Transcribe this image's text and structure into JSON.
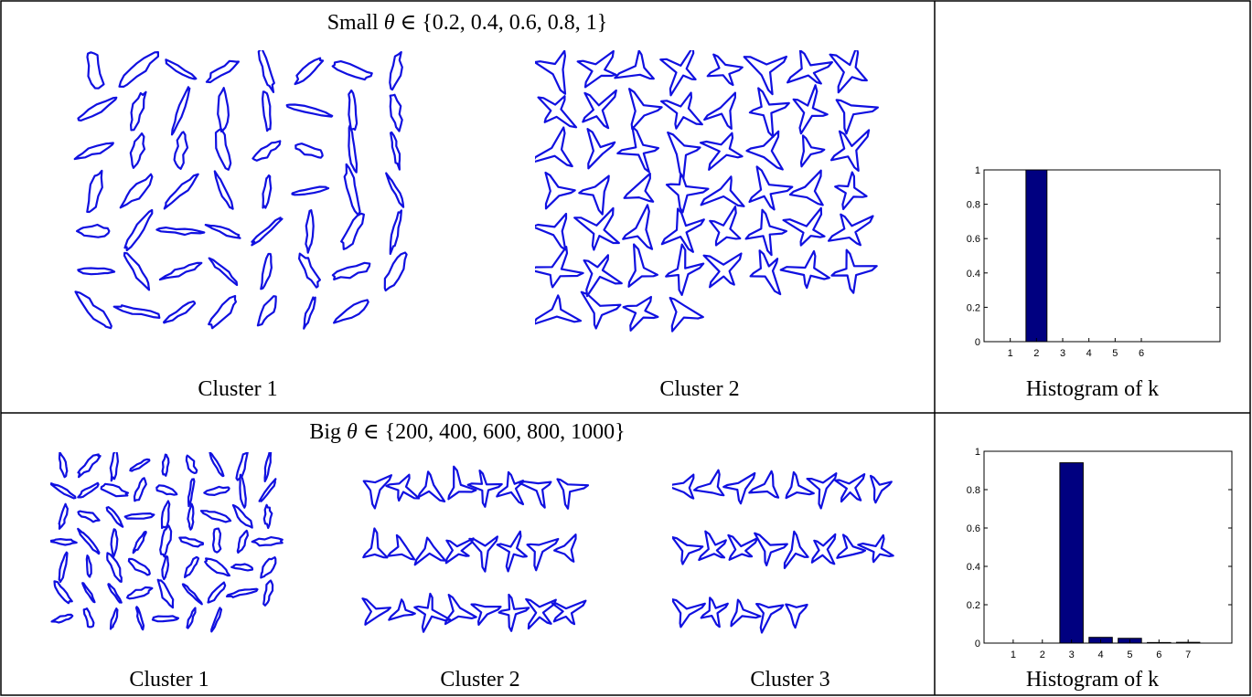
{
  "top_section": {
    "title_prefix": "Small",
    "title_symbol": "θ",
    "title_set": "∈ {0.2, 0.4, 0.6, 0.8, 1}",
    "cluster_labels": [
      "Cluster 1",
      "Cluster 2"
    ],
    "histogram_label": "Histogram of k"
  },
  "bottom_section": {
    "title_prefix": "Big",
    "title_symbol": "θ",
    "title_set": "∈ {200, 400, 600, 800, 1000}",
    "cluster_labels": [
      "Cluster 1",
      "Cluster 2",
      "Cluster 3"
    ],
    "histogram_label": "Histogram of k"
  },
  "colors": {
    "shape_stroke": "#1010e0",
    "bar_fill": "#000080"
  },
  "chart_data": [
    {
      "type": "bar",
      "categories": [
        "1",
        "2",
        "3",
        "4",
        "5",
        "6"
      ],
      "values": [
        0,
        1.0,
        0,
        0,
        0,
        0
      ],
      "ylim": [
        0,
        1
      ],
      "yticks": [
        "0",
        "0.2",
        "0.4",
        "0.6",
        "0.8",
        "1"
      ],
      "title": "",
      "xlabel": "",
      "ylabel": ""
    },
    {
      "type": "bar",
      "categories": [
        "1",
        "2",
        "3",
        "4",
        "5",
        "6",
        "7"
      ],
      "values": [
        0,
        0,
        0.94,
        0.03,
        0.025,
        0.003,
        0.004
      ],
      "ylim": [
        0,
        1
      ],
      "yticks": [
        "0",
        "0.2",
        "0.4",
        "0.6",
        "0.8",
        "1"
      ],
      "title": "",
      "xlabel": "",
      "ylabel": ""
    }
  ]
}
